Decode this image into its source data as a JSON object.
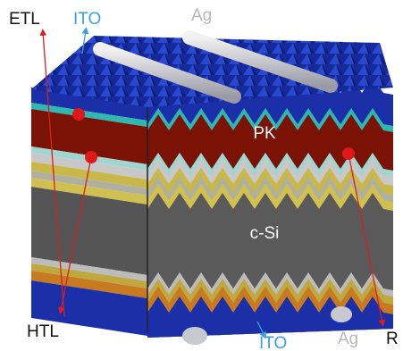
{
  "labels": {
    "etl": "ETL",
    "ito_top": "ITO",
    "ag_top": "Ag",
    "pk": "PK",
    "c_si": "c-Si",
    "htl": "HTL",
    "ito_bottom": "ITO",
    "ag_bottom": "Ag",
    "r": "R"
  }
}
